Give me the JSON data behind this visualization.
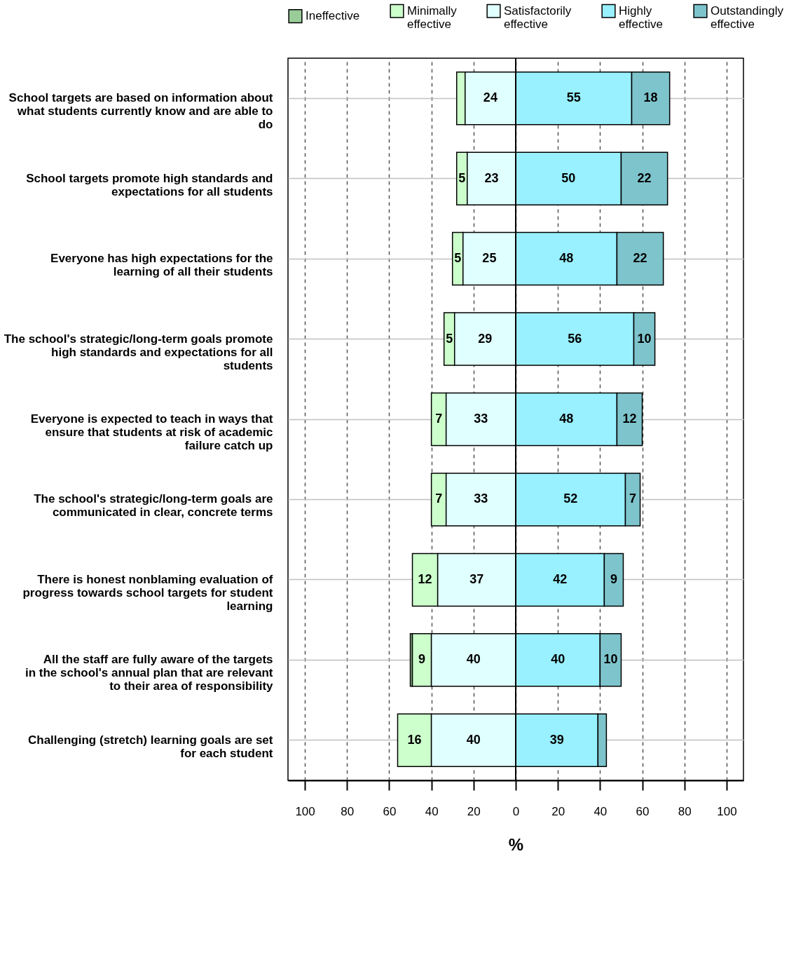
{
  "chart_data": {
    "type": "bar",
    "orientation": "horizontal",
    "xlabel": "%",
    "categories": [
      "School targets are based on information about what students currently know and are able to do",
      "School targets promote high standards and expectations for all students",
      "Everyone has high expectations for the learning of all their students",
      "The school's strategic/long-term goals promote high standards and expectations for all students",
      "Everyone is expected to teach in ways that ensure that students at risk of academic failure catch up",
      "The school's strategic/long-term goals are communicated in clear, concrete terms",
      "There is honest nonblaming evaluation of progress towards school targets for student learning",
      "All the staff are fully aware of the targets in the school's annual plan that are relevant to their area of responsibility",
      "Challenging (stretch) learning goals are set for each student"
    ],
    "series": [
      {
        "name": "Ineffective",
        "color": "#99cc99",
        "values": [
          null,
          null,
          null,
          null,
          null,
          null,
          null,
          1,
          null
        ],
        "base": [
          null,
          null,
          null,
          null,
          null,
          null,
          null,
          -50,
          null
        ],
        "value_labels": [
          null,
          null,
          null,
          null,
          null,
          null,
          null,
          null,
          null
        ]
      },
      {
        "name": "Minimally effective",
        "color": "#ccffcc",
        "values": [
          4,
          5,
          5,
          5,
          7,
          7,
          12,
          9,
          16
        ],
        "base": [
          -28,
          -28,
          -30,
          -34,
          -40,
          -40,
          -49,
          -49,
          -56
        ],
        "value_labels": [
          null,
          "5",
          "5",
          "5",
          "7",
          "7",
          "12",
          "9",
          "16"
        ]
      },
      {
        "name": "Satisfactorily effective",
        "color": "#e0ffff",
        "values": [
          24,
          23,
          25,
          29,
          33,
          33,
          37,
          40,
          40
        ],
        "base": [
          -24,
          -23,
          -25,
          -29,
          -33,
          -33,
          -37,
          -40,
          -40
        ],
        "value_labels": [
          "24",
          "23",
          "25",
          "29",
          "33",
          "33",
          "37",
          "40",
          "40"
        ]
      },
      {
        "name": "Highly effective",
        "color": "#99f0ff",
        "values": [
          55,
          50,
          48,
          56,
          48,
          52,
          42,
          40,
          39
        ],
        "base": [
          0,
          0,
          0,
          0,
          0,
          0,
          0,
          0,
          0
        ],
        "value_labels": [
          "55",
          "50",
          "48",
          "56",
          "48",
          "52",
          "42",
          "40",
          "39"
        ]
      },
      {
        "name": "Outstandingly effective",
        "color": "#7ec4cc",
        "values": [
          18,
          22,
          22,
          10,
          12,
          7,
          9,
          10,
          4
        ],
        "base": [
          55,
          50,
          48,
          56,
          48,
          52,
          42,
          40,
          39
        ],
        "value_labels": [
          "18",
          "22",
          "22",
          "10",
          "12",
          "7",
          "9",
          "10",
          null
        ]
      }
    ],
    "xlim": [
      -108,
      108
    ],
    "xticks": [
      {
        "value": -100,
        "label": "100"
      },
      {
        "value": -80,
        "label": "80"
      },
      {
        "value": -60,
        "label": "60"
      },
      {
        "value": -40,
        "label": "40"
      },
      {
        "value": -20,
        "label": "20"
      },
      0,
      20,
      40,
      60,
      80,
      100
    ],
    "ref_lines": [
      {
        "axis": "x",
        "value": 0,
        "color": "#000000"
      }
    ],
    "grid": true,
    "legend": "top"
  }
}
